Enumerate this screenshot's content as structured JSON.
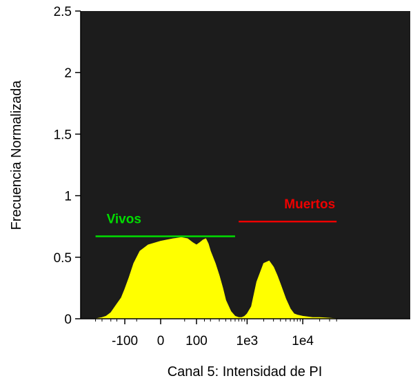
{
  "chart_data": {
    "type": "area",
    "xlabel": "Canal 5: Intensidad de PI",
    "ylabel": "Frecuencia Normalizada",
    "x_scale": "biexponential",
    "ylim": [
      0,
      2.5
    ],
    "y_ticks": [
      {
        "value": 0,
        "label": "0"
      },
      {
        "value": 0.5,
        "label": "0.5"
      },
      {
        "value": 1,
        "label": "1"
      },
      {
        "value": 1.5,
        "label": "1.5"
      },
      {
        "value": 2,
        "label": "2"
      },
      {
        "value": 2.5,
        "label": "2.5"
      }
    ],
    "x_ticks": [
      {
        "label": "-100"
      },
      {
        "label": "0"
      },
      {
        "label": "100"
      },
      {
        "label": "1e3"
      },
      {
        "label": "1e4"
      }
    ],
    "grid": false,
    "plot_background": "#1c1c1c",
    "fill_color": "#ffff00",
    "series": [
      {
        "name": "",
        "x": [
          -400,
          -300,
          -250,
          -200,
          -150,
          -120,
          -100,
          -80,
          -60,
          -40,
          -20,
          0,
          20,
          40,
          60,
          80,
          100,
          120,
          140,
          160,
          180,
          200,
          250,
          300,
          350,
          400,
          500,
          600,
          700,
          800,
          900,
          1000,
          1200,
          1500,
          2000,
          2500,
          3000,
          3500,
          4000,
          5000,
          6000,
          7000,
          8000,
          10000,
          15000,
          20000,
          30000,
          40000
        ],
        "y": [
          0.0,
          0.01,
          0.02,
          0.05,
          0.12,
          0.17,
          0.24,
          0.33,
          0.45,
          0.55,
          0.6,
          0.63,
          0.65,
          0.66,
          0.65,
          0.62,
          0.6,
          0.62,
          0.64,
          0.65,
          0.61,
          0.55,
          0.45,
          0.35,
          0.25,
          0.15,
          0.06,
          0.02,
          0.01,
          0.01,
          0.02,
          0.04,
          0.1,
          0.3,
          0.45,
          0.47,
          0.42,
          0.35,
          0.28,
          0.16,
          0.08,
          0.04,
          0.03,
          0.02,
          0.01,
          0.01,
          0.005,
          0.0
        ]
      }
    ],
    "gates": [
      {
        "label": "Vivos",
        "color": "#00dd00",
        "x_start": -400,
        "x_end": 600,
        "y": 0.67
      },
      {
        "label": "Muertos",
        "color": "#ee0000",
        "x_start": 700,
        "x_end": 40000,
        "y": 0.79
      }
    ]
  }
}
